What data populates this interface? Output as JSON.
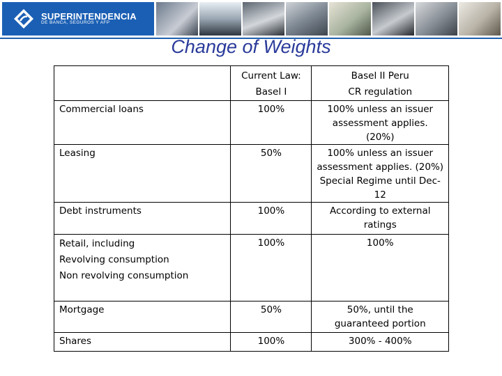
{
  "header": {
    "logo_line1": "SUPERINTENDENCIA",
    "logo_line2": "DE BANCA, SEGUROS Y AFP",
    "brand_color": "#1a5fb4"
  },
  "title": "Change of Weights",
  "table": {
    "columns": [
      "",
      "Current Law:\nBasel I",
      "Basel II Peru\nCR regulation"
    ],
    "rows": [
      {
        "item": "Commercial loans",
        "current": "100%",
        "basel2": "100% unless an issuer assessment applies. (20%)"
      },
      {
        "item": "Leasing",
        "current": "50%",
        "basel2": "100% unless an issuer assessment applies. (20%)\nSpecial Regime until Dec-12"
      },
      {
        "item": "Debt instruments",
        "current": "100%",
        "basel2": "According to external ratings"
      },
      {
        "item": "Retail, including\nRevolving consumption\nNon revolving consumption",
        "current": "100%",
        "basel2": "100%"
      },
      {
        "item": "Mortgage",
        "current": "50%",
        "basel2": "50%, until the guaranteed portion"
      },
      {
        "item": "Shares",
        "current": "100%",
        "basel2": "300% - 400%"
      }
    ]
  }
}
